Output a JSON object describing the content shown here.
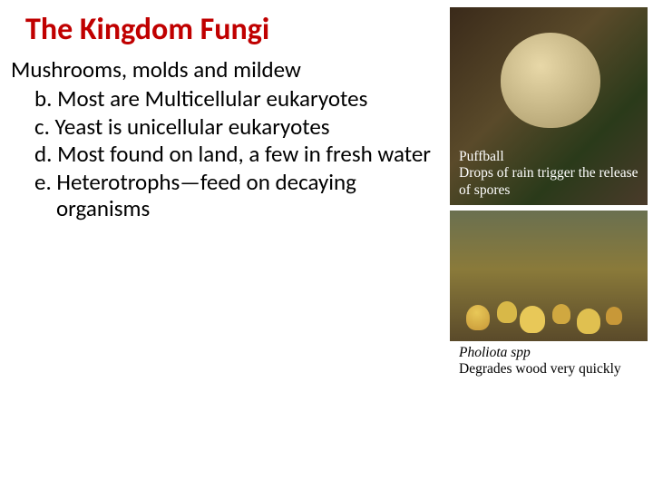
{
  "title": "The Kingdom Fungi",
  "intro": "Mushrooms, molds and mildew",
  "items": {
    "b": "b.  Most are Multicellular eukaryotes",
    "c": "c.  Yeast is unicellular eukaryotes",
    "d": "d.  Most found on land, a few in fresh water",
    "e": "e.  Heterotrophs—feed on decaying organisms"
  },
  "captions": {
    "puffball": {
      "title": "Puffball",
      "body": "Drops of rain trigger the release of spores"
    },
    "pholiota": {
      "title": "Pholiota spp",
      "body": "Degrades wood very quickly"
    }
  },
  "colors": {
    "title": "#c00000",
    "text": "#000000",
    "overlay_text": "#ffffff"
  }
}
